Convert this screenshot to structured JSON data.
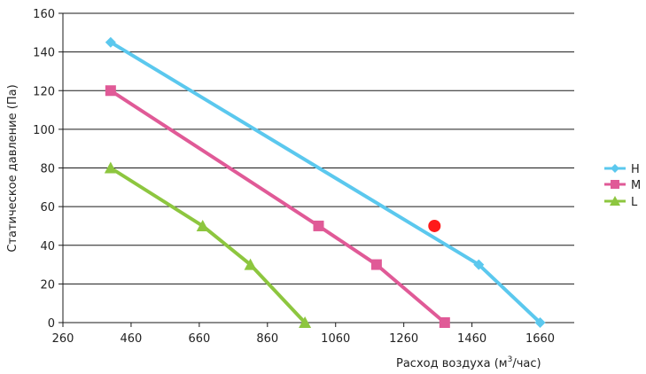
{
  "chart_data": {
    "type": "line",
    "title": "",
    "xlabel": "Расход воздуха (м",
    "xlabel_sup": "3",
    "xlabel_tail": "/час)",
    "ylabel": "Статическое давление (Па)",
    "xlim": [
      260,
      1760
    ],
    "ylim": [
      0,
      160
    ],
    "xticks": [
      "260",
      "460",
      "660",
      "860",
      "1060",
      "1260",
      "1460",
      "1660"
    ],
    "yticks": [
      "0",
      "20",
      "40",
      "60",
      "80",
      "100",
      "120",
      "140",
      "160"
    ],
    "grid": "horizontal",
    "legend_position": "right",
    "series": [
      {
        "name": "H",
        "color": "#5bc8ee",
        "marker": "diamond",
        "x": [
          400,
          1480,
          1660
        ],
        "y": [
          145,
          30,
          0
        ]
      },
      {
        "name": "M",
        "color": "#e05a97",
        "marker": "square",
        "x": [
          400,
          1010,
          1180,
          1380
        ],
        "y": [
          120,
          50,
          30,
          0
        ]
      },
      {
        "name": "L",
        "color": "#8dc63f",
        "marker": "triangle",
        "x": [
          400,
          670,
          810,
          970
        ],
        "y": [
          80,
          50,
          30,
          0
        ]
      }
    ],
    "highlight_point": {
      "x": 1350,
      "y": 50,
      "color": "#ff1a1a"
    }
  }
}
